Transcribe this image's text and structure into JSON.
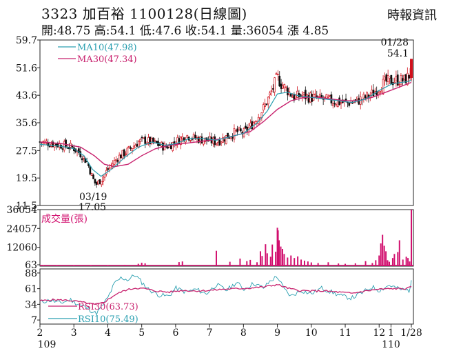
{
  "header": {
    "title": "3323 加百裕 1100128(日線圖)",
    "source": "時報資訊",
    "ohlc_line": "開:48.75 高:54.1 低:47.6 收:54.1 量:36054 漲 4.85"
  },
  "chart_data": [
    {
      "type": "candlestick",
      "panel": "price",
      "yticks": [
        "59.7",
        "51.6",
        "43.6",
        "35.6",
        "27.5",
        "19.5",
        "11.5"
      ],
      "ylim": [
        11.5,
        59.7
      ],
      "legend": [
        {
          "label": "MA10(47.98)",
          "color": "#2a9fb0"
        },
        {
          "label": "MA30(47.34)",
          "color": "#c8226e"
        }
      ],
      "annotations": [
        {
          "date": "03/19",
          "value": "17.05",
          "at_month": 3.62,
          "price": 17.05
        },
        {
          "date": "01/28",
          "value": "54.1",
          "at_month": 12.93,
          "price": 54.1
        }
      ],
      "close_path": [
        [
          2,
          30
        ],
        [
          2.4,
          29.5
        ],
        [
          2.8,
          28.8
        ],
        [
          3.0,
          28.2
        ],
        [
          3.2,
          26.5
        ],
        [
          3.4,
          24
        ],
        [
          3.55,
          19.5
        ],
        [
          3.65,
          17.5
        ],
        [
          3.8,
          19
        ],
        [
          4.0,
          22
        ],
        [
          4.3,
          25.5
        ],
        [
          4.6,
          27.5
        ],
        [
          4.9,
          30
        ],
        [
          5.1,
          30.5
        ],
        [
          5.4,
          29.5
        ],
        [
          5.7,
          28.5
        ],
        [
          6.0,
          30
        ],
        [
          6.3,
          32
        ],
        [
          6.6,
          31
        ],
        [
          6.9,
          30.5
        ],
        [
          7.2,
          30
        ],
        [
          7.5,
          31.5
        ],
        [
          7.8,
          33
        ],
        [
          8.0,
          32.5
        ],
        [
          8.2,
          34.5
        ],
        [
          8.4,
          37
        ],
        [
          8.6,
          40
        ],
        [
          8.8,
          44
        ],
        [
          9.0,
          49
        ],
        [
          9.1,
          47
        ],
        [
          9.3,
          45
        ],
        [
          9.5,
          43
        ],
        [
          9.7,
          43.5
        ],
        [
          10.0,
          43
        ],
        [
          10.3,
          42.5
        ],
        [
          10.6,
          42
        ],
        [
          10.9,
          41.5
        ],
        [
          11.2,
          41.5
        ],
        [
          11.5,
          42.5
        ],
        [
          11.8,
          44
        ],
        [
          12.0,
          46
        ],
        [
          12.2,
          47.5
        ],
        [
          12.5,
          48
        ],
        [
          12.75,
          48
        ],
        [
          12.9,
          49.5
        ],
        [
          12.95,
          54.1
        ]
      ],
      "ma10_path": [
        [
          2,
          29.3
        ],
        [
          2.6,
          28.8
        ],
        [
          3.0,
          28
        ],
        [
          3.3,
          26
        ],
        [
          3.55,
          22
        ],
        [
          3.8,
          20
        ],
        [
          4.1,
          22
        ],
        [
          4.5,
          25.5
        ],
        [
          4.9,
          28.5
        ],
        [
          5.3,
          30
        ],
        [
          5.7,
          29
        ],
        [
          6.0,
          29.5
        ],
        [
          6.4,
          31
        ],
        [
          6.8,
          31
        ],
        [
          7.2,
          30.5
        ],
        [
          7.6,
          31.5
        ],
        [
          8.0,
          32.5
        ],
        [
          8.4,
          35.5
        ],
        [
          8.7,
          39
        ],
        [
          9.0,
          44
        ],
        [
          9.3,
          44.5
        ],
        [
          9.6,
          43.5
        ],
        [
          10.0,
          43
        ],
        [
          10.4,
          42.5
        ],
        [
          10.8,
          42
        ],
        [
          11.2,
          41.5
        ],
        [
          11.6,
          42.5
        ],
        [
          12.0,
          45
        ],
        [
          12.4,
          47
        ],
        [
          12.8,
          47.5
        ],
        [
          12.95,
          47.98
        ]
      ],
      "ma30_path": [
        [
          2,
          30
        ],
        [
          2.6,
          29.6
        ],
        [
          3.2,
          28.5
        ],
        [
          3.6,
          26
        ],
        [
          3.9,
          23.5
        ],
        [
          4.2,
          22.8
        ],
        [
          4.6,
          23.5
        ],
        [
          5.0,
          26
        ],
        [
          5.4,
          28
        ],
        [
          5.8,
          29
        ],
        [
          6.2,
          29.5
        ],
        [
          6.6,
          30
        ],
        [
          7.0,
          30.5
        ],
        [
          7.4,
          31
        ],
        [
          7.8,
          32
        ],
        [
          8.2,
          33
        ],
        [
          8.6,
          36
        ],
        [
          9.0,
          39.5
        ],
        [
          9.4,
          42
        ],
        [
          9.8,
          43
        ],
        [
          10.2,
          43
        ],
        [
          10.6,
          42.5
        ],
        [
          11.0,
          42
        ],
        [
          11.4,
          42
        ],
        [
          11.8,
          43
        ],
        [
          12.2,
          44.5
        ],
        [
          12.6,
          46
        ],
        [
          12.95,
          47.34
        ]
      ]
    },
    {
      "type": "bar",
      "panel": "volume",
      "legend": [
        {
          "label": "成交量(張)",
          "color": "#d10f6e"
        }
      ],
      "yticks": [
        "36054",
        "24057",
        "12060",
        "63"
      ],
      "ylim": [
        63,
        36054
      ],
      "bars": [
        [
          2.1,
          200
        ],
        [
          2.5,
          150
        ],
        [
          3.0,
          300
        ],
        [
          3.5,
          600
        ],
        [
          4.0,
          400
        ],
        [
          4.5,
          800
        ],
        [
          4.9,
          1500
        ],
        [
          5.0,
          2200
        ],
        [
          5.1,
          1800
        ],
        [
          6.1,
          2600
        ],
        [
          6.2,
          3000
        ],
        [
          7.2,
          9800
        ],
        [
          7.6,
          2800
        ],
        [
          7.9,
          4800
        ],
        [
          8.1,
          3200
        ],
        [
          8.2,
          4000
        ],
        [
          8.4,
          2500
        ],
        [
          8.5,
          9500
        ],
        [
          8.55,
          6500
        ],
        [
          8.65,
          14000
        ],
        [
          8.7,
          8200
        ],
        [
          8.8,
          6000
        ],
        [
          8.85,
          13800
        ],
        [
          8.95,
          9200
        ],
        [
          9.0,
          24500
        ],
        [
          9.02,
          22800
        ],
        [
          9.05,
          16500
        ],
        [
          9.1,
          12500
        ],
        [
          9.15,
          11000
        ],
        [
          9.2,
          7800
        ],
        [
          9.3,
          5500
        ],
        [
          9.4,
          6800
        ],
        [
          9.5,
          5200
        ],
        [
          9.6,
          6200
        ],
        [
          9.7,
          4200
        ],
        [
          9.8,
          3500
        ],
        [
          9.9,
          3000
        ],
        [
          10.0,
          2400
        ],
        [
          10.2,
          2000
        ],
        [
          10.5,
          2500
        ],
        [
          10.8,
          1700
        ],
        [
          11.0,
          1500
        ],
        [
          11.3,
          1800
        ],
        [
          11.6,
          3200
        ],
        [
          11.8,
          2000
        ],
        [
          11.9,
          3800
        ],
        [
          12.0,
          6800
        ],
        [
          12.05,
          14500
        ],
        [
          12.1,
          20000
        ],
        [
          12.15,
          13000
        ],
        [
          12.2,
          9500
        ],
        [
          12.25,
          3800
        ],
        [
          12.3,
          2800
        ],
        [
          12.4,
          5200
        ],
        [
          12.45,
          7800
        ],
        [
          12.55,
          9000
        ],
        [
          12.6,
          16500
        ],
        [
          12.7,
          4200
        ],
        [
          12.8,
          6000
        ],
        [
          12.85,
          5200
        ],
        [
          12.9,
          3000
        ],
        [
          12.95,
          36054
        ]
      ]
    },
    {
      "type": "line",
      "panel": "rsi",
      "yticks": [
        "88",
        "61",
        "34",
        "7"
      ],
      "ylim": [
        7,
        88
      ],
      "legend": [
        {
          "label": "RSI30(63.73)",
          "color": "#c8226e"
        },
        {
          "label": "RSI10(75.49)",
          "color": "#2a9fb0"
        }
      ],
      "rsi10_path": [
        [
          2,
          38
        ],
        [
          2.3,
          41
        ],
        [
          2.6,
          36
        ],
        [
          2.9,
          42
        ],
        [
          3.1,
          35
        ],
        [
          3.3,
          30
        ],
        [
          3.5,
          24
        ],
        [
          3.65,
          18
        ],
        [
          3.8,
          28
        ],
        [
          4.0,
          45
        ],
        [
          4.2,
          70
        ],
        [
          4.4,
          80
        ],
        [
          4.6,
          76
        ],
        [
          4.8,
          85
        ],
        [
          5.0,
          72
        ],
        [
          5.2,
          60
        ],
        [
          5.5,
          50
        ],
        [
          5.8,
          48
        ],
        [
          6.0,
          62
        ],
        [
          6.3,
          55
        ],
        [
          6.6,
          60
        ],
        [
          6.9,
          52
        ],
        [
          7.2,
          68
        ],
        [
          7.5,
          58
        ],
        [
          7.8,
          72
        ],
        [
          8.0,
          60
        ],
        [
          8.3,
          70
        ],
        [
          8.6,
          62
        ],
        [
          8.8,
          75
        ],
        [
          9.0,
          82
        ],
        [
          9.2,
          60
        ],
        [
          9.4,
          48
        ],
        [
          9.7,
          58
        ],
        [
          10.0,
          52
        ],
        [
          10.3,
          62
        ],
        [
          10.6,
          55
        ],
        [
          10.9,
          48
        ],
        [
          11.2,
          45
        ],
        [
          11.5,
          54
        ],
        [
          11.8,
          64
        ],
        [
          12.0,
          58
        ],
        [
          12.3,
          67
        ],
        [
          12.6,
          60
        ],
        [
          12.9,
          58
        ],
        [
          12.95,
          75.49
        ]
      ],
      "rsi30_path": [
        [
          2,
          40
        ],
        [
          2.4,
          42
        ],
        [
          2.8,
          41
        ],
        [
          3.1,
          39
        ],
        [
          3.4,
          36
        ],
        [
          3.65,
          33
        ],
        [
          3.9,
          38
        ],
        [
          4.2,
          50
        ],
        [
          4.5,
          58
        ],
        [
          4.8,
          62
        ],
        [
          5.1,
          61
        ],
        [
          5.4,
          57
        ],
        [
          5.8,
          55
        ],
        [
          6.2,
          58
        ],
        [
          6.6,
          57
        ],
        [
          7.0,
          58
        ],
        [
          7.4,
          60
        ],
        [
          7.8,
          61
        ],
        [
          8.2,
          62
        ],
        [
          8.6,
          64
        ],
        [
          9.0,
          68
        ],
        [
          9.3,
          62
        ],
        [
          9.6,
          58
        ],
        [
          10.0,
          57
        ],
        [
          10.4,
          57
        ],
        [
          10.8,
          55
        ],
        [
          11.2,
          53
        ],
        [
          11.6,
          57
        ],
        [
          12.0,
          60
        ],
        [
          12.4,
          61
        ],
        [
          12.8,
          61
        ],
        [
          12.95,
          63.73
        ]
      ]
    }
  ],
  "xaxis": {
    "ticks": [
      {
        "label": "2",
        "month": 2
      },
      {
        "label": "3",
        "month": 3
      },
      {
        "label": "4",
        "month": 4
      },
      {
        "label": "5",
        "month": 5
      },
      {
        "label": "6",
        "month": 6
      },
      {
        "label": "7",
        "month": 7
      },
      {
        "label": "8",
        "month": 8
      },
      {
        "label": "9",
        "month": 9
      },
      {
        "label": "10",
        "month": 10
      },
      {
        "label": "11",
        "month": 11
      },
      {
        "label": "12",
        "month": 12
      },
      {
        "label": "1",
        "month": 12.35
      },
      {
        "label": "1/28",
        "month": 12.95
      }
    ],
    "years": [
      {
        "label": "109",
        "month": 2
      },
      {
        "label": "110",
        "month": 12.35
      }
    ]
  },
  "colors": {
    "up": "#d10f1b",
    "down": "#111111",
    "ma10": "#2a9fb0",
    "ma30": "#c8226e",
    "volume": "#d10f6e",
    "axis": "#222222"
  }
}
